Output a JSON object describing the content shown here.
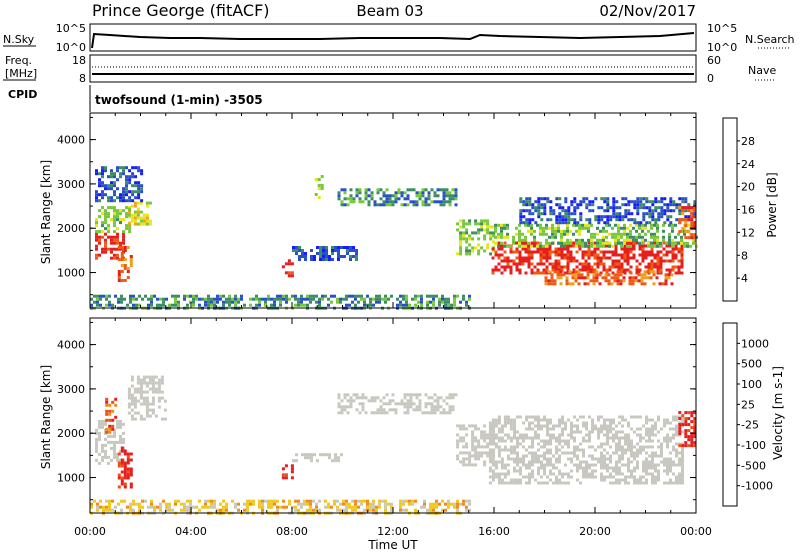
{
  "header": {
    "title": "Prince George (fitACF)",
    "beam": "Beam 03",
    "date": "02/Nov/2017"
  },
  "panels": {
    "nsky": {
      "label": "N.Sky",
      "tick_top": "10^5",
      "tick_bottom": "10^0",
      "right_label": "N.Search",
      "right_tick_top": "10^5",
      "right_tick_bottom": "10^0"
    },
    "freq": {
      "label_line1": "Freq.",
      "label_line2": "[MHz]",
      "tick_top": "18",
      "tick_bottom": "8",
      "right_label": "Nave",
      "right_tick_top": "60",
      "right_tick_bottom": "0"
    },
    "cpid": {
      "label": "CPID",
      "text": "twofsound (1-min) -3505"
    }
  },
  "colors": {
    "background": "#ffffff",
    "ground_scatter": "#c8c8c0"
  },
  "chart_data": [
    {
      "type": "heatmap",
      "name": "power",
      "ylabel": "Slant Range [km]",
      "ylim": [
        200,
        4600
      ],
      "y_ticks": [
        "1000",
        "2000",
        "3000",
        "4000"
      ],
      "colorbar": {
        "label": "Power [dB]",
        "ticks": [
          "4",
          "8",
          "12",
          "16",
          "20",
          "24",
          "28"
        ],
        "colors": [
          "#1a1aff",
          "#2850c8",
          "#3c8c64",
          "#78c83c",
          "#e6e61e",
          "#f0a01e",
          "#f05a14",
          "#e61e1e"
        ]
      },
      "regions": [
        {
          "x0": 0.2,
          "x1": 1.3,
          "y0": 1350,
          "y1": 1900,
          "level": 7
        },
        {
          "x0": 0.2,
          "x1": 1.6,
          "y0": 1900,
          "y1": 2500,
          "level": 3
        },
        {
          "x0": 1.1,
          "x1": 1.6,
          "y0": 800,
          "y1": 1600,
          "level": 6
        },
        {
          "x0": 1.5,
          "x1": 2.4,
          "y0": 2100,
          "y1": 2600,
          "level": 4
        },
        {
          "x0": 0.2,
          "x1": 2.0,
          "y0": 2600,
          "y1": 3400,
          "level": 1
        },
        {
          "x0": 7.6,
          "x1": 8.0,
          "y0": 900,
          "y1": 1300,
          "level": 7
        },
        {
          "x0": 8.0,
          "x1": 10.5,
          "y0": 1300,
          "y1": 1600,
          "level": 1
        },
        {
          "x0": 8.9,
          "x1": 9.2,
          "y0": 2700,
          "y1": 3200,
          "level": 3
        },
        {
          "x0": 9.8,
          "x1": 14.5,
          "y0": 2500,
          "y1": 2900,
          "level": 2
        },
        {
          "x0": 14.5,
          "x1": 16.0,
          "y0": 1400,
          "y1": 2200,
          "level": 3
        },
        {
          "x0": 15.9,
          "x1": 23.5,
          "y0": 1000,
          "y1": 1700,
          "level": 7
        },
        {
          "x0": 18.0,
          "x1": 23.0,
          "y0": 750,
          "y1": 1050,
          "level": 6
        },
        {
          "x0": 16.0,
          "x1": 24.0,
          "y0": 1600,
          "y1": 2100,
          "level": 3
        },
        {
          "x0": 17.0,
          "x1": 24.0,
          "y0": 2100,
          "y1": 2700,
          "level": 1
        },
        {
          "x0": 23.3,
          "x1": 24.0,
          "y0": 1700,
          "y1": 2500,
          "level": 6
        },
        {
          "x0": 0.0,
          "x1": 15.0,
          "y0": 200,
          "y1": 500,
          "level": 2
        }
      ]
    },
    {
      "type": "heatmap",
      "name": "velocity",
      "ylabel": "Slant Range [km]",
      "ylim": [
        200,
        4600
      ],
      "y_ticks": [
        "1000",
        "2000",
        "3000",
        "4000"
      ],
      "xlabel": "Time UT",
      "xlim": [
        0,
        24
      ],
      "x_ticks": [
        "00:00",
        "04:00",
        "08:00",
        "12:00",
        "16:00",
        "20:00",
        "00:00"
      ],
      "colorbar": {
        "label": "Velocity [m s-1]",
        "ticks": [
          "1000",
          "500",
          "100",
          "25",
          "-25",
          "-100",
          "-500",
          "-1000"
        ],
        "colors": [
          "#1e3cc8",
          "#2878a0",
          "#329650",
          "#5ac83c",
          "#c8c8c0",
          "#f0c81e",
          "#f08c1e",
          "#f05014",
          "#e61e1e"
        ]
      },
      "regions": [
        {
          "x0": 0.2,
          "x1": 1.3,
          "y0": 1300,
          "y1": 2300,
          "level": 4
        },
        {
          "x0": 1.1,
          "x1": 1.6,
          "y0": 800,
          "y1": 1700,
          "level": 8
        },
        {
          "x0": 0.6,
          "x1": 1.0,
          "y0": 2000,
          "y1": 2800,
          "level": 7
        },
        {
          "x0": 1.5,
          "x1": 3.0,
          "y0": 2300,
          "y1": 3300,
          "level": 4
        },
        {
          "x0": 7.6,
          "x1": 8.0,
          "y0": 950,
          "y1": 1300,
          "level": 8
        },
        {
          "x0": 8.0,
          "x1": 10.0,
          "y0": 1350,
          "y1": 1550,
          "level": 4
        },
        {
          "x0": 9.8,
          "x1": 14.5,
          "y0": 2450,
          "y1": 2900,
          "level": 4
        },
        {
          "x0": 14.5,
          "x1": 16.0,
          "y0": 1300,
          "y1": 2200,
          "level": 4
        },
        {
          "x0": 15.8,
          "x1": 23.5,
          "y0": 900,
          "y1": 2400,
          "level": 4
        },
        {
          "x0": 23.3,
          "x1": 24.0,
          "y0": 1700,
          "y1": 2500,
          "level": 8
        },
        {
          "x0": 0.0,
          "x1": 15.0,
          "y0": 200,
          "y1": 500,
          "level": 5
        }
      ]
    }
  ]
}
